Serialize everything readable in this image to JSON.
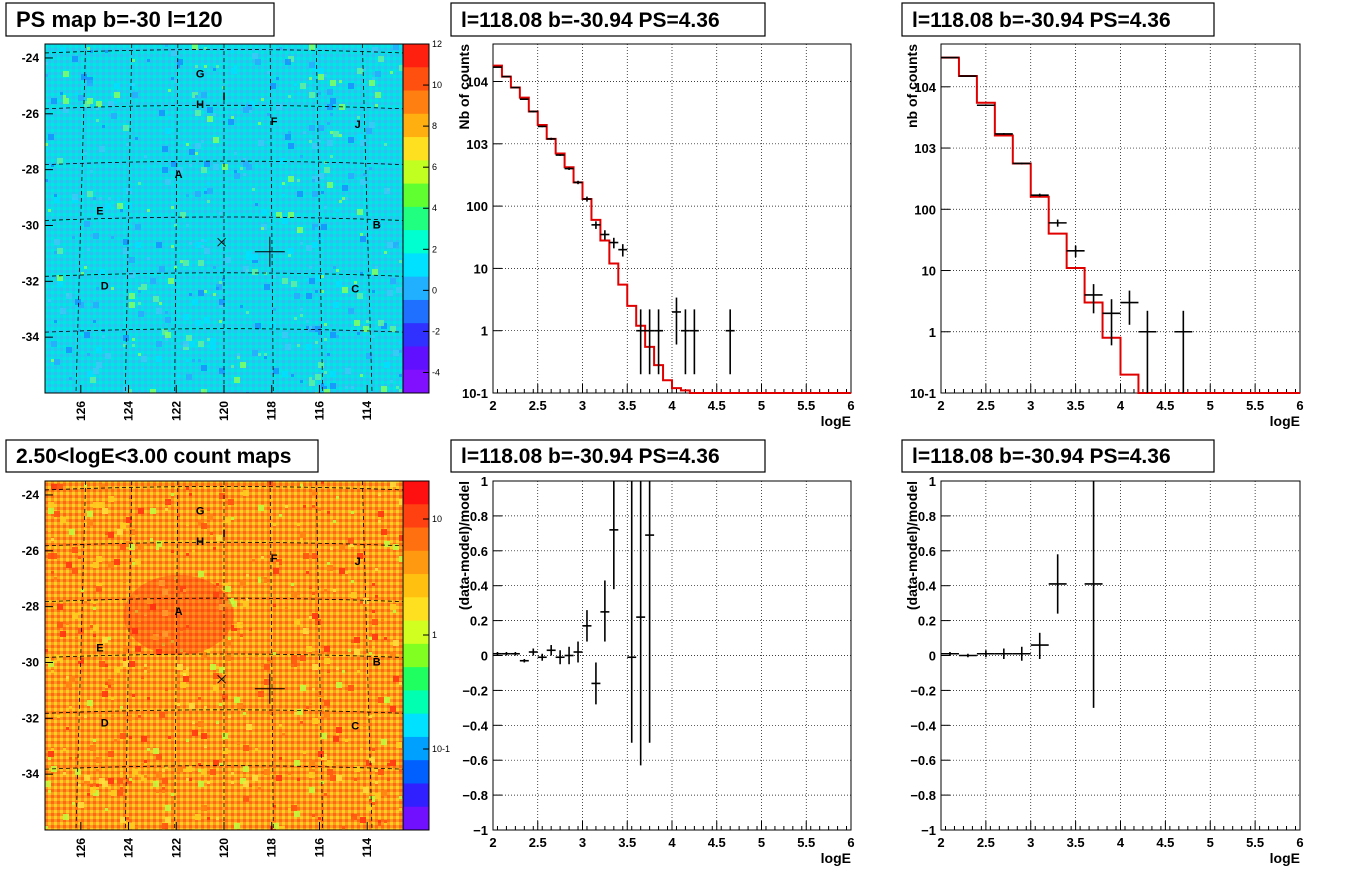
{
  "colors": {
    "hist_line": "#e00000",
    "data_points": "#000000",
    "grid": "#000000",
    "title_box_border": "#000000",
    "map_low": "#00e0f0",
    "map_high": "#ff3010"
  },
  "pads": [
    {
      "title": "PS map b=-30 l=120",
      "kind": "map",
      "colorbar_ticks": [
        "12",
        "10",
        "8",
        "6",
        "4",
        "2",
        "0",
        "-2",
        "-4"
      ],
      "y_ticks": [
        "-24",
        "-26",
        "-28",
        "-30",
        "-32",
        "-34"
      ],
      "x_ticks": [
        "126",
        "124",
        "122",
        "120",
        "118",
        "116",
        "114"
      ],
      "source_labels": [
        "G",
        "H",
        "I",
        "F",
        "J",
        "A",
        "E",
        "B",
        "D",
        "C"
      ]
    },
    {
      "title": "l=118.08 b=-30.94 PS=4.36",
      "kind": "spectrum",
      "xlabel": "logE",
      "ylabel": "Nb of counts"
    },
    {
      "title": "l=118.08 b=-30.94 PS=4.36",
      "kind": "spectrum",
      "xlabel": "logE",
      "ylabel": "nb of counts"
    },
    {
      "title": "2.50<logE<3.00 count maps",
      "kind": "map",
      "colorbar_ticks": [
        "10",
        "1",
        "10-1"
      ],
      "y_ticks": [
        "-24",
        "-26",
        "-28",
        "-30",
        "-32",
        "-34"
      ],
      "x_ticks": [
        "126",
        "124",
        "122",
        "120",
        "118",
        "116",
        "114"
      ],
      "source_labels": [
        "G",
        "H",
        "I",
        "F",
        "J",
        "A",
        "E",
        "B",
        "D",
        "C"
      ]
    },
    {
      "title": "l=118.08 b=-30.94 PS=4.36",
      "kind": "residual",
      "xlabel": "logE",
      "ylabel": "(data-model)/model"
    },
    {
      "title": "l=118.08 b=-30.94 PS=4.36",
      "kind": "residual",
      "xlabel": "logE",
      "ylabel": "(data-model)/model"
    }
  ],
  "chart_data": [
    {
      "type": "heatmap",
      "title": "PS map b=-30 l=120",
      "xlim": [
        127.5,
        112.5
      ],
      "ylim": [
        -36,
        -23.5
      ],
      "colorbar_range": [
        -5,
        12
      ],
      "marked_source": {
        "l": 118.08,
        "b": -30.94
      },
      "x_marker": {
        "l": 120.1,
        "b": -30.6
      },
      "sources": [
        {
          "name": "G",
          "l": 121.0,
          "b": -24.7
        },
        {
          "name": "H",
          "l": 121.0,
          "b": -25.8
        },
        {
          "name": "I",
          "l": 120.0,
          "b": -25.5
        },
        {
          "name": "F",
          "l": 117.9,
          "b": -26.4
        },
        {
          "name": "J",
          "l": 114.4,
          "b": -26.5
        },
        {
          "name": "A",
          "l": 121.9,
          "b": -28.3
        },
        {
          "name": "E",
          "l": 125.2,
          "b": -29.6
        },
        {
          "name": "B",
          "l": 113.6,
          "b": -30.1
        },
        {
          "name": "D",
          "l": 125.0,
          "b": -32.3
        },
        {
          "name": "C",
          "l": 114.5,
          "b": -32.4
        }
      ]
    },
    {
      "type": "line",
      "title": "l=118.08 b=-30.94 PS=4.36",
      "xlabel": "logE",
      "ylabel": "Nb of counts",
      "xlim": [
        2,
        6
      ],
      "ylim": [
        0.1,
        40000
      ],
      "yscale": "log",
      "grid": true,
      "model_bins": {
        "edges": [
          2.0,
          2.1,
          2.2,
          2.3,
          2.4,
          2.5,
          2.6,
          2.7,
          2.8,
          2.9,
          3.0,
          3.1,
          3.2,
          3.3,
          3.4,
          3.5,
          3.6,
          3.7,
          3.8,
          3.9,
          4.0,
          4.1,
          4.2,
          4.3,
          6.0
        ],
        "values": [
          18000,
          12000,
          8000,
          5500,
          3300,
          2000,
          1200,
          700,
          420,
          240,
          130,
          60,
          28,
          12,
          5.5,
          2.5,
          1.2,
          0.55,
          0.28,
          0.16,
          0.12,
          0.11,
          0.1,
          0.1
        ]
      },
      "data_points": [
        {
          "x": 2.05,
          "y": 17000,
          "ylo": 16800,
          "yhi": 17200
        },
        {
          "x": 2.15,
          "y": 12000,
          "ylo": 11800,
          "yhi": 12200
        },
        {
          "x": 2.25,
          "y": 8000,
          "ylo": 7900,
          "yhi": 8100
        },
        {
          "x": 2.35,
          "y": 5200,
          "ylo": 5100,
          "yhi": 5300
        },
        {
          "x": 2.45,
          "y": 3300,
          "ylo": 3200,
          "yhi": 3400
        },
        {
          "x": 2.55,
          "y": 1900,
          "ylo": 1850,
          "yhi": 1950
        },
        {
          "x": 2.65,
          "y": 1200,
          "ylo": 1150,
          "yhi": 1250
        },
        {
          "x": 2.75,
          "y": 660,
          "ylo": 640,
          "yhi": 680
        },
        {
          "x": 2.85,
          "y": 400,
          "ylo": 380,
          "yhi": 420
        },
        {
          "x": 2.95,
          "y": 240,
          "ylo": 225,
          "yhi": 255
        },
        {
          "x": 3.05,
          "y": 130,
          "ylo": 118,
          "yhi": 142
        },
        {
          "x": 3.15,
          "y": 50,
          "ylo": 43,
          "yhi": 57
        },
        {
          "x": 3.25,
          "y": 35,
          "ylo": 29,
          "yhi": 41
        },
        {
          "x": 3.35,
          "y": 26,
          "ylo": 21,
          "yhi": 31
        },
        {
          "x": 3.45,
          "y": 20,
          "ylo": 15.5,
          "yhi": 24.5
        },
        {
          "x": 3.65,
          "y": 1,
          "ylo": 0.2,
          "yhi": 2.2
        },
        {
          "x": 3.75,
          "y": 1,
          "ylo": 0.2,
          "yhi": 2.2
        },
        {
          "x": 3.85,
          "y": 1,
          "ylo": 0.2,
          "yhi": 2.2
        },
        {
          "x": 4.05,
          "y": 2,
          "ylo": 0.6,
          "yhi": 3.4
        },
        {
          "x": 4.15,
          "y": 1,
          "ylo": 0.2,
          "yhi": 2.2
        },
        {
          "x": 4.25,
          "y": 1,
          "ylo": 0.2,
          "yhi": 2.2
        },
        {
          "x": 4.65,
          "y": 1,
          "ylo": 0.2,
          "yhi": 2.2
        }
      ]
    },
    {
      "type": "line",
      "title": "l=118.08 b=-30.94 PS=4.36",
      "xlabel": "logE",
      "ylabel": "nb of counts",
      "xlim": [
        2,
        6
      ],
      "ylim": [
        0.1,
        50000
      ],
      "yscale": "log",
      "grid": true,
      "model_bins": {
        "edges": [
          2.0,
          2.2,
          2.4,
          2.6,
          2.8,
          3.0,
          3.2,
          3.4,
          3.6,
          3.8,
          4.0,
          4.2,
          6.0
        ],
        "values": [
          30000,
          15000,
          5500,
          1600,
          560,
          160,
          40,
          11,
          3,
          0.8,
          0.2,
          0.1
        ]
      },
      "data_points": [
        {
          "x": 2.1,
          "y": 30000,
          "ylo": 29700,
          "yhi": 30300
        },
        {
          "x": 2.3,
          "y": 15000,
          "ylo": 14800,
          "yhi": 15200
        },
        {
          "x": 2.5,
          "y": 5000,
          "ylo": 4900,
          "yhi": 5100
        },
        {
          "x": 2.7,
          "y": 1700,
          "ylo": 1650,
          "yhi": 1750
        },
        {
          "x": 2.9,
          "y": 560,
          "ylo": 540,
          "yhi": 580
        },
        {
          "x": 3.1,
          "y": 170,
          "ylo": 160,
          "yhi": 180
        },
        {
          "x": 3.3,
          "y": 60,
          "ylo": 52,
          "yhi": 68
        },
        {
          "x": 3.5,
          "y": 21,
          "ylo": 16.5,
          "yhi": 25.5
        },
        {
          "x": 3.7,
          "y": 4,
          "ylo": 2,
          "yhi": 6
        },
        {
          "x": 3.9,
          "y": 2,
          "ylo": 0.6,
          "yhi": 3.4
        },
        {
          "x": 4.1,
          "y": 3,
          "ylo": 1.3,
          "yhi": 4.7
        },
        {
          "x": 4.3,
          "y": 1,
          "ylo": 0.1,
          "yhi": 2.2
        },
        {
          "x": 4.7,
          "y": 1,
          "ylo": 0.1,
          "yhi": 2.2
        }
      ]
    },
    {
      "type": "heatmap",
      "title": "2.50<logE<3.00 count maps",
      "xlim": [
        127.5,
        112.5
      ],
      "ylim": [
        -36,
        -23.5
      ],
      "colorbar_scale": "log",
      "marked_source": {
        "l": 118.08,
        "b": -30.94
      },
      "x_marker": {
        "l": 120.1,
        "b": -30.6
      },
      "sources": [
        {
          "name": "G",
          "l": 121.0,
          "b": -24.7
        },
        {
          "name": "H",
          "l": 121.0,
          "b": -25.8
        },
        {
          "name": "I",
          "l": 120.0,
          "b": -25.5
        },
        {
          "name": "F",
          "l": 117.9,
          "b": -26.4
        },
        {
          "name": "J",
          "l": 114.4,
          "b": -26.5
        },
        {
          "name": "A",
          "l": 121.9,
          "b": -28.3
        },
        {
          "name": "E",
          "l": 125.2,
          "b": -29.6
        },
        {
          "name": "B",
          "l": 113.6,
          "b": -30.1
        },
        {
          "name": "D",
          "l": 125.0,
          "b": -32.3
        },
        {
          "name": "C",
          "l": 114.5,
          "b": -32.4
        }
      ]
    },
    {
      "type": "scatter",
      "title": "l=118.08 b=-30.94 PS=4.36",
      "xlabel": "logE",
      "ylabel": "(data-model)/model",
      "xlim": [
        2,
        6
      ],
      "ylim": [
        -1,
        1
      ],
      "grid": true,
      "x_ticks": [
        2,
        2.5,
        3,
        3.5,
        4,
        4.5,
        5,
        5.5,
        6
      ],
      "y_ticks": [
        -1,
        -0.8,
        -0.6,
        -0.4,
        -0.2,
        0,
        0.2,
        0.4,
        0.6,
        0.8,
        1
      ],
      "data_points": [
        {
          "x": 2.05,
          "y": 0.01,
          "ylo": 0.0,
          "yhi": 0.02
        },
        {
          "x": 2.15,
          "y": 0.01,
          "ylo": 0.0,
          "yhi": 0.02
        },
        {
          "x": 2.25,
          "y": 0.01,
          "ylo": 0.0,
          "yhi": 0.02
        },
        {
          "x": 2.35,
          "y": -0.03,
          "ylo": -0.04,
          "yhi": -0.02
        },
        {
          "x": 2.45,
          "y": 0.02,
          "ylo": 0.0,
          "yhi": 0.04
        },
        {
          "x": 2.55,
          "y": -0.01,
          "ylo": -0.03,
          "yhi": 0.01
        },
        {
          "x": 2.65,
          "y": 0.03,
          "ylo": 0.0,
          "yhi": 0.06
        },
        {
          "x": 2.75,
          "y": -0.01,
          "ylo": -0.05,
          "yhi": 0.03
        },
        {
          "x": 2.85,
          "y": 0.0,
          "ylo": -0.05,
          "yhi": 0.05
        },
        {
          "x": 2.95,
          "y": 0.02,
          "ylo": -0.04,
          "yhi": 0.08
        },
        {
          "x": 3.05,
          "y": 0.17,
          "ylo": 0.08,
          "yhi": 0.26
        },
        {
          "x": 3.15,
          "y": -0.16,
          "ylo": -0.28,
          "yhi": -0.04
        },
        {
          "x": 3.25,
          "y": 0.25,
          "ylo": 0.08,
          "yhi": 0.43
        },
        {
          "x": 3.35,
          "y": 0.72,
          "ylo": 0.38,
          "yhi": 1.0
        },
        {
          "x": 3.55,
          "y": -0.01,
          "ylo": -0.5,
          "yhi": 1.0
        },
        {
          "x": 3.65,
          "y": 0.22,
          "ylo": -0.63,
          "yhi": 1.0
        },
        {
          "x": 3.75,
          "y": 0.69,
          "ylo": -0.5,
          "yhi": 1.0
        }
      ]
    },
    {
      "type": "scatter",
      "title": "l=118.08 b=-30.94 PS=4.36",
      "xlabel": "logE",
      "ylabel": "(data-model)/model",
      "xlim": [
        2,
        6
      ],
      "ylim": [
        -1,
        1
      ],
      "grid": true,
      "x_ticks": [
        2,
        2.5,
        3,
        3.5,
        4,
        4.5,
        5,
        5.5,
        6
      ],
      "y_ticks": [
        -1,
        -0.8,
        -0.6,
        -0.4,
        -0.2,
        0,
        0.2,
        0.4,
        0.6,
        0.8,
        1
      ],
      "data_points": [
        {
          "x": 2.1,
          "y": 0.01,
          "ylo": 0.0,
          "yhi": 0.02
        },
        {
          "x": 2.3,
          "y": 0.0,
          "ylo": -0.01,
          "yhi": 0.01
        },
        {
          "x": 2.5,
          "y": 0.01,
          "ylo": -0.01,
          "yhi": 0.03
        },
        {
          "x": 2.7,
          "y": 0.01,
          "ylo": -0.02,
          "yhi": 0.04
        },
        {
          "x": 2.9,
          "y": 0.01,
          "ylo": -0.03,
          "yhi": 0.05
        },
        {
          "x": 3.1,
          "y": 0.06,
          "ylo": -0.02,
          "yhi": 0.13
        },
        {
          "x": 3.3,
          "y": 0.41,
          "ylo": 0.24,
          "yhi": 0.58
        },
        {
          "x": 3.7,
          "y": 0.41,
          "ylo": -0.3,
          "yhi": 1.0
        }
      ]
    }
  ]
}
